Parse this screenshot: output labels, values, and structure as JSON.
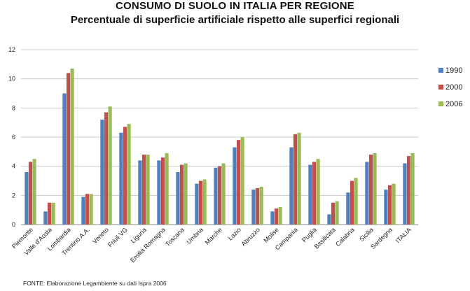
{
  "title": "CONSUMO DI SUOLO IN ITALIA PER REGIONE",
  "subtitle": "Percentuale di superficie artificiale rispetto alle superfici regionali",
  "source": "FONTE: Elaborazione Legambiente su dati Ispra 2006",
  "chart_data": {
    "type": "bar",
    "title": "CONSUMO DI SUOLO IN ITALIA PER REGIONE",
    "subtitle": "Percentuale di superficie artificiale rispetto alle superfici regionali",
    "xlabel": "",
    "ylabel": "",
    "ylim": [
      0,
      12
    ],
    "yticks": [
      0,
      2,
      4,
      6,
      8,
      10,
      12
    ],
    "grid": true,
    "legend_position": "right",
    "categories": [
      "Piemonte",
      "Valle d'Aosta",
      "Lombardia",
      "Trentino A.A.",
      "Veneto",
      "Friuli VG",
      "Liguria",
      "Emilia Romagna",
      "Toscana",
      "Umbria",
      "Marche",
      "Lazio",
      "Abruzzo",
      "Molise",
      "Campania",
      "Puglia",
      "Basilicata",
      "Calabria",
      "Sicilia",
      "Sardegna",
      "ITALIA"
    ],
    "series": [
      {
        "name": "1990",
        "color": "#4f81bd",
        "values": [
          3.6,
          0.9,
          9.0,
          1.9,
          7.2,
          6.3,
          4.4,
          4.4,
          3.6,
          2.8,
          3.9,
          5.3,
          2.4,
          0.9,
          5.3,
          4.1,
          0.7,
          2.2,
          4.3,
          2.4,
          4.2
        ]
      },
      {
        "name": "2000",
        "color": "#c0504d",
        "values": [
          4.3,
          1.5,
          10.4,
          2.1,
          7.7,
          6.7,
          4.8,
          4.6,
          4.1,
          3.0,
          4.0,
          5.8,
          2.5,
          1.1,
          6.2,
          4.3,
          1.5,
          3.0,
          4.8,
          2.7,
          4.7
        ]
      },
      {
        "name": "2006",
        "color": "#9bbb59",
        "values": [
          4.5,
          1.5,
          10.7,
          2.1,
          8.1,
          6.9,
          4.8,
          4.9,
          4.2,
          3.1,
          4.2,
          6.0,
          2.6,
          1.2,
          6.3,
          4.5,
          1.6,
          3.2,
          4.9,
          2.8,
          4.9
        ]
      }
    ]
  }
}
